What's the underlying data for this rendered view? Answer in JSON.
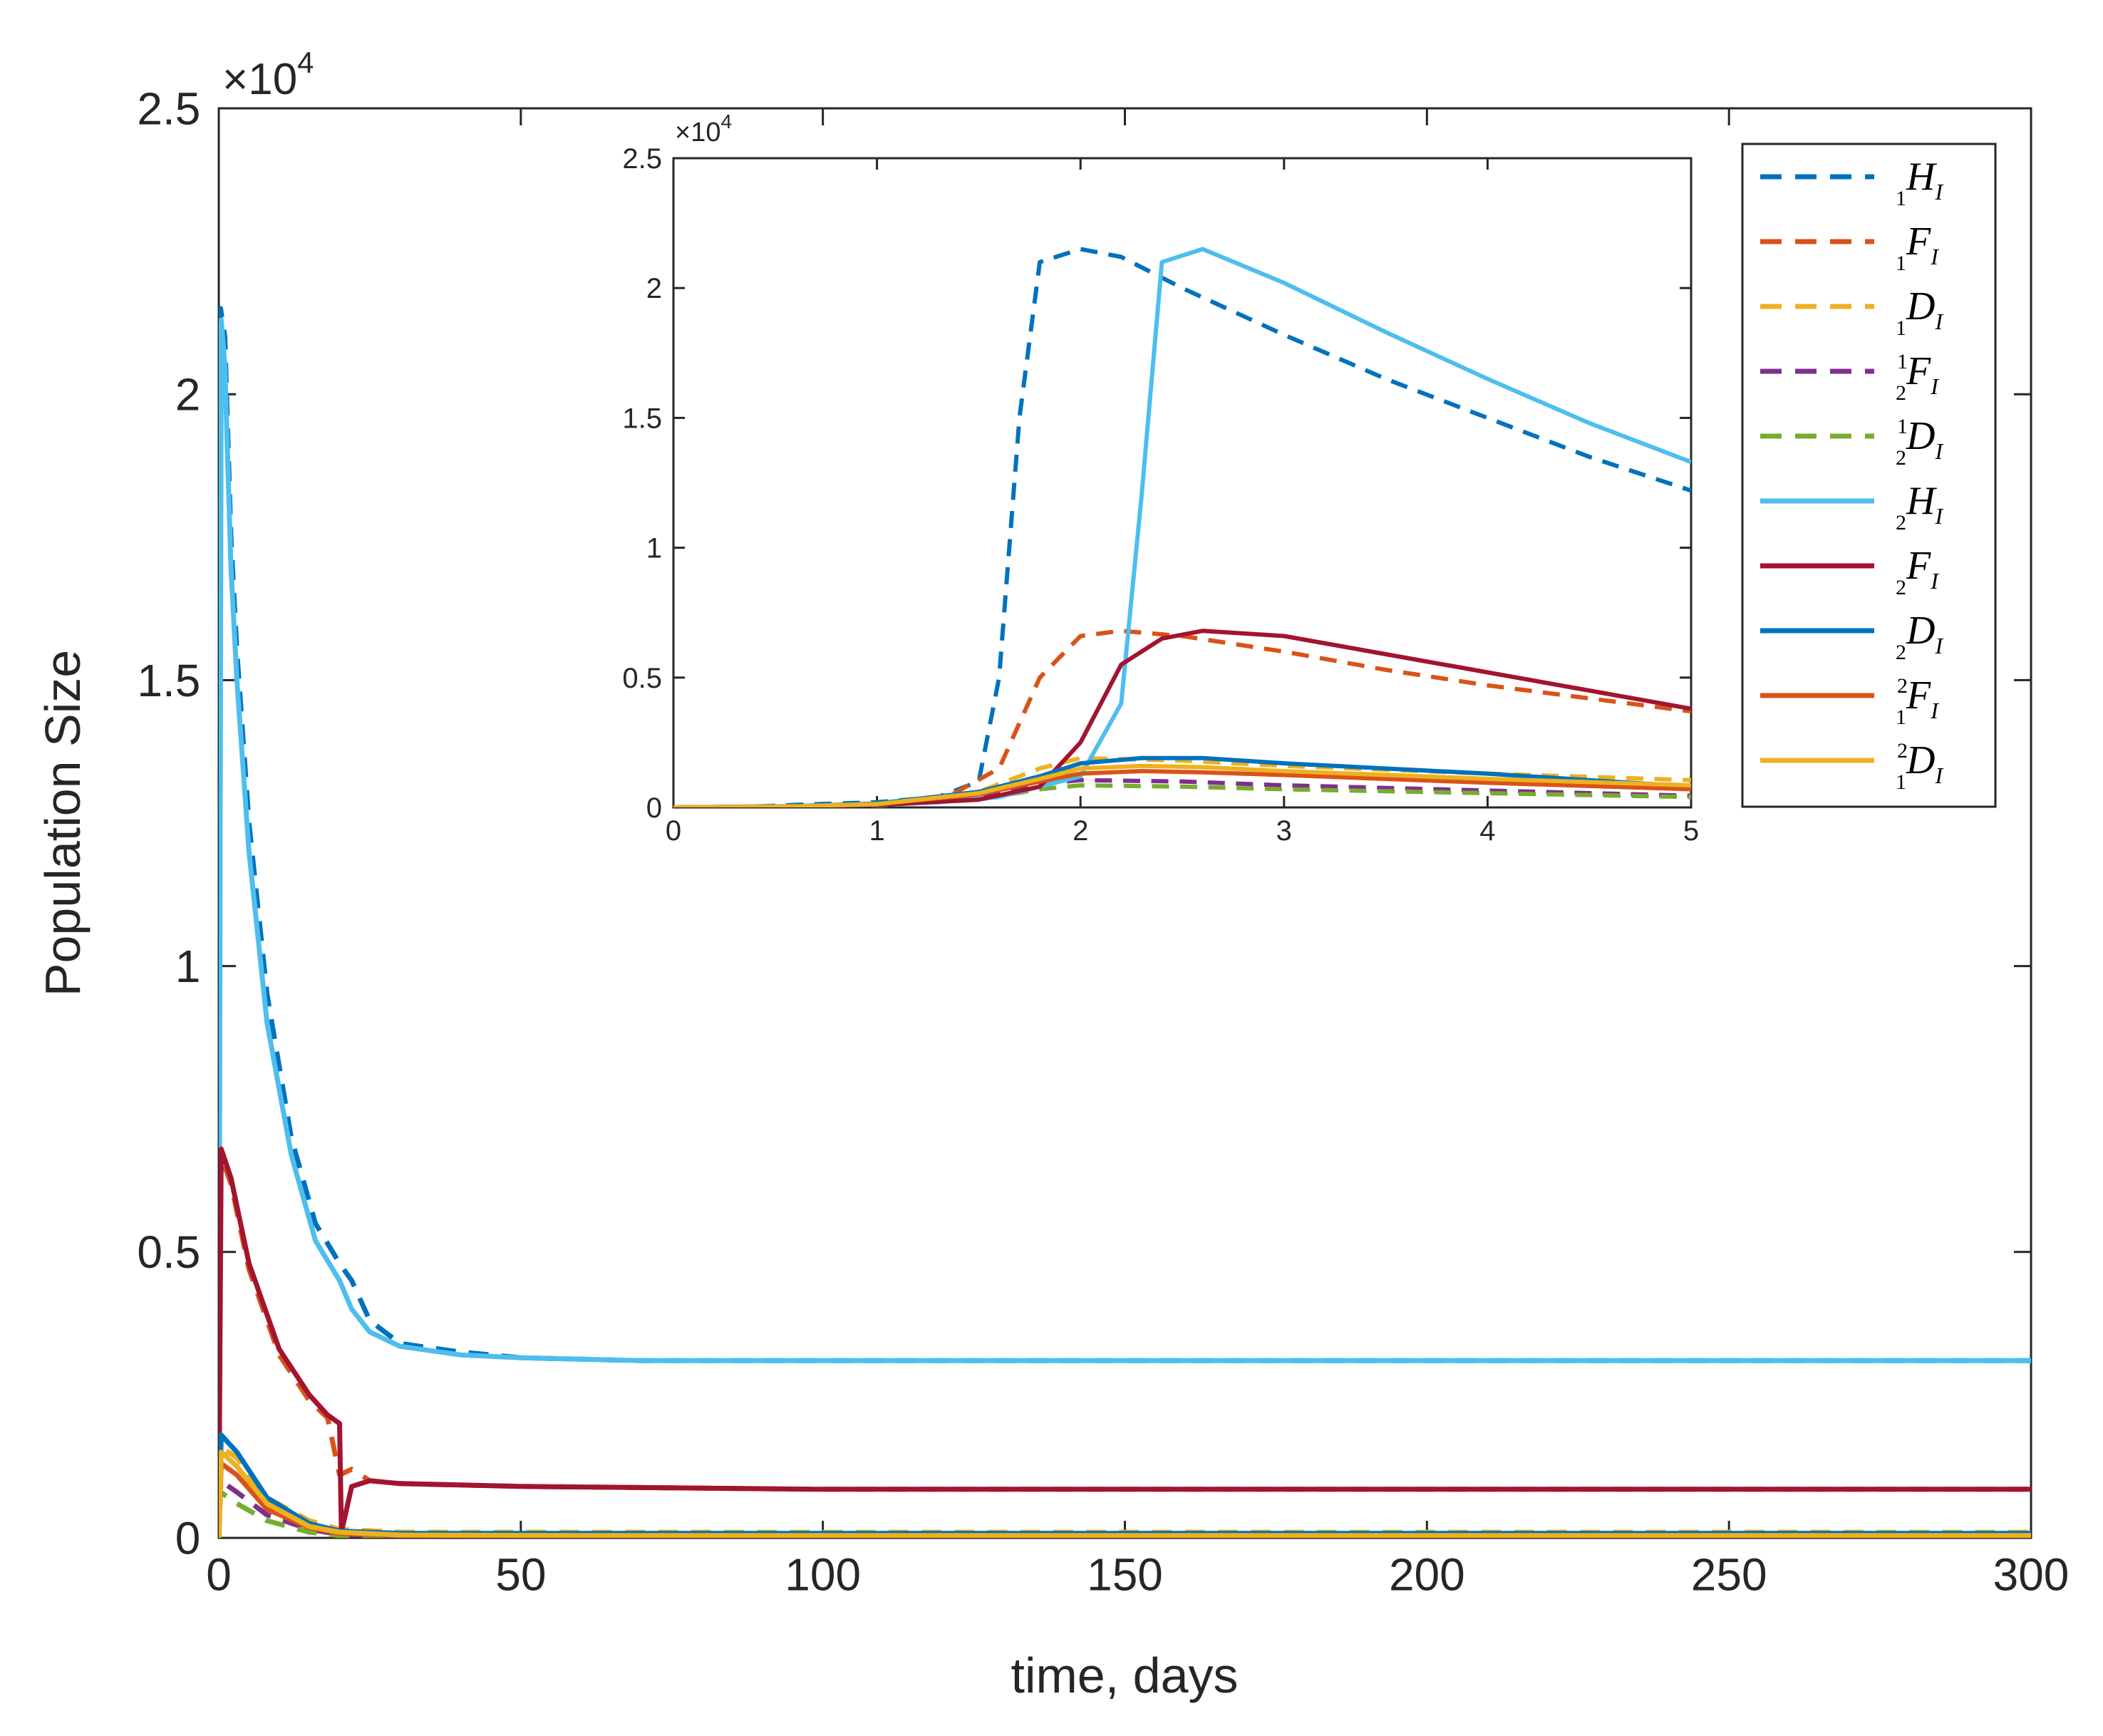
{
  "chart_data": {
    "main": {
      "type": "line",
      "xlabel": "time, days",
      "ylabel": "Population Size",
      "exponent_label": "×10",
      "exponent_power": "4",
      "xlim": [
        0,
        300
      ],
      "ylim": [
        0,
        25000
      ],
      "xticks": [
        0,
        50,
        100,
        150,
        200,
        250,
        300
      ],
      "xtick_labels": [
        "0",
        "50",
        "100",
        "150",
        "200",
        "250",
        "300"
      ],
      "yticks": [
        0,
        5000,
        10000,
        15000,
        20000,
        25000
      ],
      "ytick_labels": [
        "0",
        "0.5",
        "1",
        "1.5",
        "2",
        "2.5"
      ]
    },
    "inset": {
      "type": "line",
      "exponent_label": "×10",
      "exponent_power": "4",
      "xlim": [
        0,
        5
      ],
      "ylim": [
        0,
        25000
      ],
      "xticks": [
        0,
        1,
        2,
        3,
        4,
        5
      ],
      "xtick_labels": [
        "0",
        "1",
        "2",
        "3",
        "4",
        "5"
      ],
      "yticks": [
        0,
        5000,
        10000,
        15000,
        20000,
        25000
      ],
      "ytick_labels": [
        "0",
        "0.5",
        "1",
        "1.5",
        "2",
        "2.5"
      ]
    },
    "series": [
      {
        "name": "1HI",
        "pre": "1",
        "sup": "",
        "base": "H",
        "sub": "I",
        "style": "dashed",
        "color": "#0072BD",
        "main": {
          "x": [
            0,
            0.3,
            1,
            2,
            3,
            5,
            8,
            12,
            16,
            20,
            22,
            25,
            30,
            40,
            50,
            70,
            100,
            150,
            200,
            250,
            300
          ],
          "y": [
            0,
            21500,
            21000,
            17500,
            15500,
            12500,
            9500,
            7000,
            5500,
            4800,
            4500,
            3800,
            3400,
            3250,
            3150,
            3100,
            3100,
            3100,
            3100,
            3100,
            3100
          ]
        },
        "inset": {
          "x": [
            0,
            0.1,
            0.3,
            0.6,
            1,
            1.3,
            1.5,
            1.6,
            1.7,
            1.8,
            2.0,
            2.2,
            2.5,
            3,
            3.5,
            4,
            4.5,
            5
          ],
          "y": [
            0,
            0,
            0,
            100,
            200,
            400,
            1000,
            5000,
            15000,
            21000,
            21500,
            21200,
            20000,
            18200,
            16500,
            15000,
            13500,
            12200
          ]
        }
      },
      {
        "name": "1FI",
        "pre": "1",
        "sup": "",
        "base": "F",
        "sub": "I",
        "style": "dashed",
        "color": "#D95319",
        "main": {
          "x": [
            0,
            0.3,
            2,
            5,
            10,
            15,
            18,
            20,
            22,
            25,
            30,
            50,
            100,
            200,
            300
          ],
          "y": [
            0,
            6700,
            6200,
            4700,
            3200,
            2400,
            2100,
            1100,
            1200,
            1000,
            950,
            900,
            850,
            850,
            850
          ]
        },
        "inset": {
          "x": [
            0,
            0.3,
            0.6,
            1,
            1.3,
            1.6,
            1.8,
            2.0,
            2.2,
            2.5,
            3,
            3.5,
            4,
            4.5,
            5
          ],
          "y": [
            0,
            0,
            50,
            100,
            200,
            1500,
            5000,
            6600,
            6800,
            6600,
            6000,
            5300,
            4700,
            4200,
            3700
          ]
        }
      },
      {
        "name": "1DI",
        "pre": "1",
        "sup": "",
        "base": "D",
        "sub": "I",
        "style": "dashed",
        "color": "#EDB120",
        "main": {
          "x": [
            0,
            0.3,
            3,
            8,
            15,
            20,
            30,
            60,
            100,
            200,
            300
          ],
          "y": [
            0,
            1600,
            1400,
            700,
            300,
            150,
            100,
            100,
            100,
            100,
            100
          ]
        },
        "inset": {
          "x": [
            0,
            0.6,
            1,
            1.5,
            1.8,
            2.0,
            2.5,
            3,
            4,
            5
          ],
          "y": [
            0,
            50,
            150,
            600,
            1500,
            1900,
            1800,
            1600,
            1300,
            1050
          ]
        }
      },
      {
        "name": "12FI",
        "pre": "2",
        "sup": "1",
        "base": "F",
        "sub": "I",
        "style": "dashed",
        "color": "#7E2F8E",
        "main": {
          "x": [
            0,
            0.3,
            3,
            8,
            15,
            20,
            30,
            60,
            100,
            200,
            300
          ],
          "y": [
            0,
            1000,
            800,
            400,
            150,
            60,
            30,
            20,
            20,
            20,
            20
          ]
        },
        "inset": {
          "x": [
            0,
            0.6,
            1,
            1.5,
            1.8,
            2.0,
            2.5,
            3,
            4,
            5
          ],
          "y": [
            0,
            30,
            100,
            400,
            900,
            1050,
            1000,
            850,
            650,
            450
          ]
        }
      },
      {
        "name": "12DI",
        "pre": "2",
        "sup": "1",
        "base": "D",
        "sub": "I",
        "style": "dashed",
        "color": "#77AC30",
        "main": {
          "x": [
            0,
            0.3,
            3,
            8,
            15,
            20,
            30,
            60,
            100,
            200,
            300
          ],
          "y": [
            0,
            800,
            600,
            300,
            100,
            40,
            20,
            10,
            10,
            10,
            10
          ]
        },
        "inset": {
          "x": [
            0,
            0.6,
            1,
            1.5,
            1.8,
            2.0,
            2.5,
            3,
            4,
            5
          ],
          "y": [
            0,
            20,
            80,
            300,
            700,
            850,
            800,
            700,
            550,
            400
          ]
        }
      },
      {
        "name": "2HI",
        "pre": "2",
        "sup": "",
        "base": "H",
        "sub": "I",
        "style": "solid",
        "color": "#4DBEEE",
        "main": {
          "x": [
            0,
            0.4,
            1,
            2,
            3,
            5,
            8,
            12,
            16,
            20,
            22,
            25,
            30,
            40,
            50,
            70,
            100,
            150,
            200,
            250,
            300
          ],
          "y": [
            0,
            21300,
            20500,
            17000,
            15000,
            12000,
            9000,
            6700,
            5200,
            4500,
            4000,
            3600,
            3350,
            3200,
            3150,
            3100,
            3100,
            3100,
            3100,
            3100,
            3100
          ]
        },
        "inset": {
          "x": [
            0,
            0.3,
            0.6,
            1,
            1.3,
            1.6,
            2.0,
            2.2,
            2.3,
            2.4,
            2.6,
            3,
            3.5,
            4,
            4.5,
            5
          ],
          "y": [
            0,
            0,
            50,
            100,
            200,
            400,
            1200,
            4000,
            12000,
            21000,
            21500,
            20200,
            18300,
            16500,
            14800,
            13300
          ]
        }
      },
      {
        "name": "2FI",
        "pre": "2",
        "sup": "",
        "base": "F",
        "sub": "I",
        "style": "solid",
        "color": "#A2142F",
        "main": {
          "x": [
            0,
            0.4,
            2,
            5,
            10,
            15,
            18,
            20,
            20.3,
            22,
            25,
            30,
            50,
            100,
            200,
            300
          ],
          "y": [
            0,
            6800,
            6300,
            4800,
            3300,
            2500,
            2150,
            2000,
            100,
            900,
            1000,
            950,
            900,
            850,
            850,
            850
          ]
        },
        "inset": {
          "x": [
            0,
            0.6,
            1,
            1.5,
            1.8,
            2.0,
            2.2,
            2.4,
            2.6,
            3,
            3.5,
            4,
            4.5,
            5
          ],
          "y": [
            0,
            50,
            100,
            300,
            800,
            2500,
            5500,
            6500,
            6800,
            6600,
            5900,
            5200,
            4500,
            3800
          ]
        }
      },
      {
        "name": "2DI",
        "pre": "2",
        "sup": "",
        "base": "D",
        "sub": "I",
        "style": "solid",
        "color": "#0072BD",
        "main": {
          "x": [
            0,
            0.4,
            3,
            8,
            15,
            20,
            30,
            60,
            100,
            200,
            300
          ],
          "y": [
            0,
            1800,
            1500,
            700,
            250,
            120,
            80,
            80,
            80,
            80,
            80
          ]
        },
        "inset": {
          "x": [
            0,
            0.6,
            1,
            1.5,
            1.8,
            2.0,
            2.3,
            2.6,
            3,
            4,
            5
          ],
          "y": [
            0,
            50,
            150,
            600,
            1200,
            1700,
            1900,
            1900,
            1700,
            1300,
            800
          ]
        }
      },
      {
        "name": "21FI",
        "pre": "1",
        "sup": "2",
        "base": "F",
        "sub": "I",
        "style": "solid",
        "color": "#D95319",
        "main": {
          "x": [
            0,
            0.4,
            3,
            8,
            15,
            20,
            30,
            60,
            100,
            200,
            300
          ],
          "y": [
            0,
            1300,
            1100,
            500,
            180,
            80,
            40,
            30,
            30,
            30,
            30
          ]
        },
        "inset": {
          "x": [
            0,
            0.6,
            1,
            1.5,
            1.8,
            2.0,
            2.3,
            2.6,
            3,
            4,
            5
          ],
          "y": [
            0,
            40,
            120,
            500,
            1000,
            1300,
            1400,
            1350,
            1250,
            950,
            700
          ]
        }
      },
      {
        "name": "21DI",
        "pre": "1",
        "sup": "2",
        "base": "D",
        "sub": "I",
        "style": "solid",
        "color": "#EDB120",
        "main": {
          "x": [
            0,
            0.4,
            3,
            8,
            15,
            20,
            30,
            60,
            100,
            200,
            300
          ],
          "y": [
            0,
            1500,
            1250,
            600,
            200,
            100,
            50,
            40,
            40,
            40,
            40
          ]
        },
        "inset": {
          "x": [
            0,
            0.6,
            1,
            1.5,
            1.8,
            2.0,
            2.3,
            2.6,
            3,
            4,
            5
          ],
          "y": [
            0,
            40,
            130,
            550,
            1100,
            1500,
            1600,
            1550,
            1400,
            1100,
            850
          ]
        }
      }
    ]
  }
}
